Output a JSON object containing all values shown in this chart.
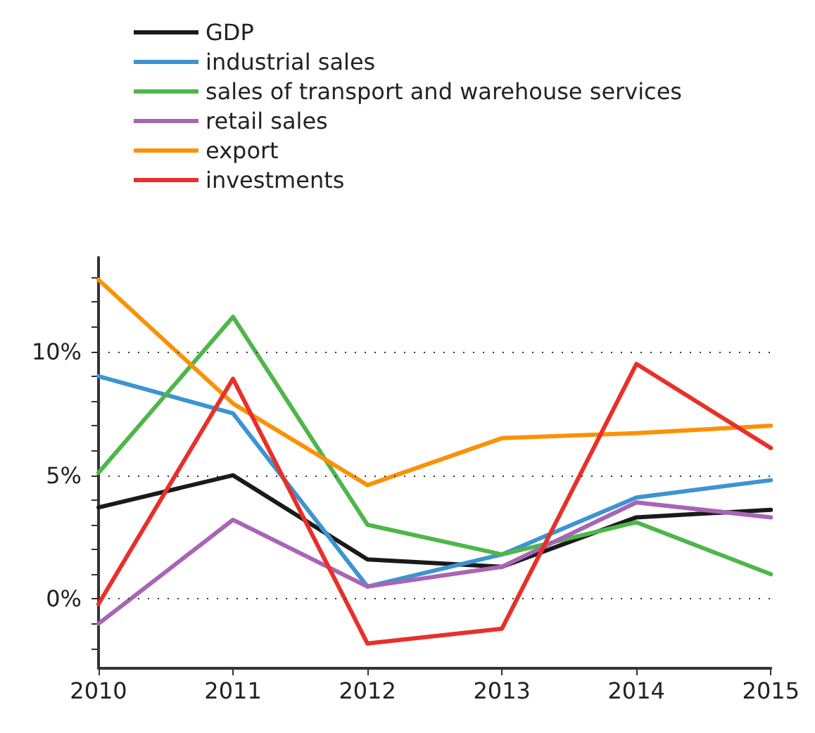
{
  "chart_data": {
    "type": "line",
    "categories": [
      "2010",
      "2011",
      "2012",
      "2013",
      "2014",
      "2015"
    ],
    "series": [
      {
        "name": "GDP",
        "color": "#1a1a1a",
        "values": [
          3.7,
          5.0,
          1.6,
          1.3,
          3.3,
          3.6
        ]
      },
      {
        "name": "industrial sales",
        "color": "#3c94d0",
        "values": [
          9.0,
          7.5,
          0.5,
          1.8,
          4.1,
          4.8
        ]
      },
      {
        "name": "sales of transport and warehouse services",
        "color": "#4fb64a",
        "values": [
          5.1,
          11.4,
          3.0,
          1.8,
          3.1,
          1.0
        ]
      },
      {
        "name": "retail sales",
        "color": "#a865b5",
        "values": [
          -1.0,
          3.2,
          0.5,
          1.3,
          3.9,
          3.3
        ]
      },
      {
        "name": "export",
        "color": "#fb9106",
        "values": [
          12.9,
          7.9,
          4.6,
          6.5,
          6.7,
          7.0
        ]
      },
      {
        "name": "investments",
        "color": "#e8302a",
        "values": [
          -0.2,
          8.9,
          -1.8,
          -1.2,
          9.5,
          6.1
        ]
      }
    ],
    "ylim": [
      -2.8,
      13.8
    ],
    "yticks": [
      {
        "value": -2,
        "label": null
      },
      {
        "value": -1,
        "label": null
      },
      {
        "value": 0,
        "label": "0%"
      },
      {
        "value": 1,
        "label": null
      },
      {
        "value": 2,
        "label": null
      },
      {
        "value": 3,
        "label": null
      },
      {
        "value": 4,
        "label": null
      },
      {
        "value": 5,
        "label": "5%"
      },
      {
        "value": 6,
        "label": null
      },
      {
        "value": 7,
        "label": null
      },
      {
        "value": 8,
        "label": null
      },
      {
        "value": 9,
        "label": null
      },
      {
        "value": 10,
        "label": "10%"
      },
      {
        "value": 11,
        "label": null
      },
      {
        "value": 12,
        "label": null
      },
      {
        "value": 13,
        "label": null
      }
    ],
    "grid": "y",
    "legend": "top left",
    "marker": "none",
    "line_style": "solid"
  }
}
